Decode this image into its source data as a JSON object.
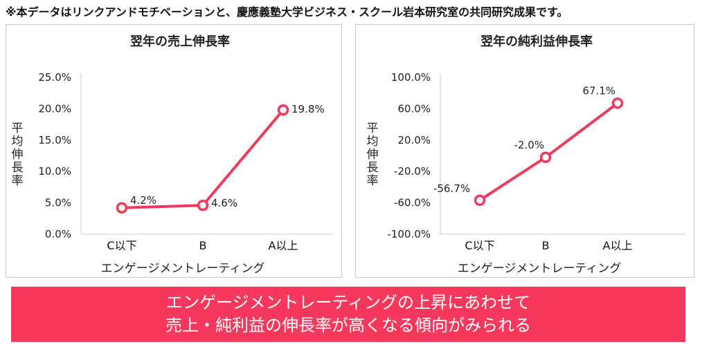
{
  "note": "※本データはリンクアンドモチベーションと、慶應義塾大学ビジネス・スクール岩本研究室の共同研究成果です。",
  "banner": {
    "line1": "エンゲージメントレーティングの上昇にあわせて",
    "line2": "売上・純利益の伸長率が高くなる傾向がみられる"
  },
  "colors": {
    "accent": "#f5385c",
    "line": "#ef3a5d"
  },
  "chart_data": [
    {
      "type": "line",
      "title": "翌年の売上伸長率",
      "xlabel": "エンゲージメントレーティング",
      "ylabel": "平均伸長率",
      "categories": [
        "C以下",
        "B",
        "A以上"
      ],
      "values": [
        4.2,
        4.6,
        19.8
      ],
      "data_labels": [
        "4.2%",
        "4.6%",
        "19.8%"
      ],
      "yticks": [
        0,
        5,
        10,
        15,
        20,
        25
      ],
      "ytick_labels": [
        "0.0%",
        "5.0%",
        "10.0%",
        "15.0%",
        "20.0%",
        "25.0%"
      ],
      "ylim": [
        0,
        25
      ],
      "grid": false
    },
    {
      "type": "line",
      "title": "翌年の純利益伸長率",
      "xlabel": "エンゲージメントレーティング",
      "ylabel": "平均伸長率",
      "categories": [
        "C以下",
        "B",
        "A以上"
      ],
      "values": [
        -56.7,
        -2.0,
        67.1
      ],
      "data_labels": [
        "-56.7%",
        "-2.0%",
        "67.1%"
      ],
      "yticks": [
        -100,
        -60,
        -20,
        20,
        60,
        100
      ],
      "ytick_labels": [
        "-100.0%",
        "-60.0%",
        "-20.0%",
        "20.0%",
        "60.0%",
        "100.0%"
      ],
      "ylim": [
        -100,
        100
      ],
      "grid": false
    }
  ]
}
